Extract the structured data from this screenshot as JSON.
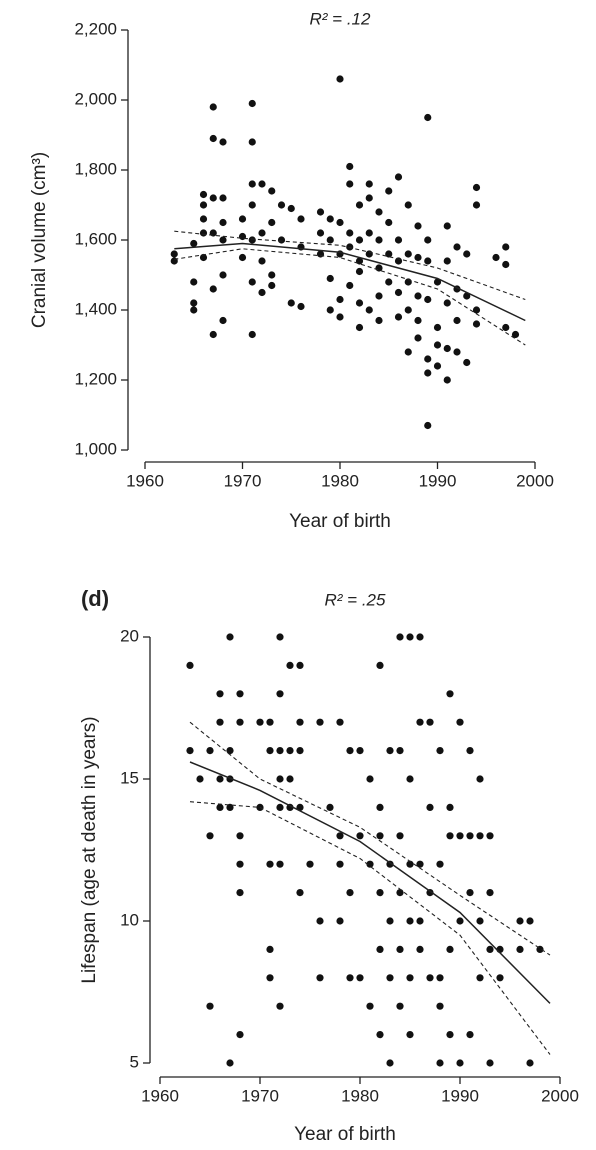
{
  "chart_data": [
    {
      "type": "scatter",
      "title": "R² = .12",
      "xlabel": "Year of birth",
      "ylabel": "Cranial volume (cm³)",
      "xlim": [
        1960,
        2000
      ],
      "xticks": [
        1960,
        1970,
        1980,
        1990,
        2000
      ],
      "ylim": [
        1000,
        2200
      ],
      "yticks": [
        {
          "value": 1000,
          "label": "1,000"
        },
        {
          "value": 1200,
          "label": "1,200"
        },
        {
          "value": 1400,
          "label": "1,400"
        },
        {
          "value": 1600,
          "label": "1,600"
        },
        {
          "value": 1800,
          "label": "1,800"
        },
        {
          "value": 2000,
          "label": "2,000"
        },
        {
          "value": 2200,
          "label": "2,200"
        }
      ],
      "color": "#111111",
      "points": [
        [
          1963,
          1540
        ],
        [
          1963,
          1560
        ],
        [
          1965,
          1400
        ],
        [
          1965,
          1420
        ],
        [
          1965,
          1480
        ],
        [
          1965,
          1590
        ],
        [
          1966,
          1620
        ],
        [
          1966,
          1660
        ],
        [
          1966,
          1700
        ],
        [
          1966,
          1730
        ],
        [
          1966,
          1550
        ],
        [
          1967,
          1980
        ],
        [
          1967,
          1890
        ],
        [
          1967,
          1330
        ],
        [
          1967,
          1460
        ],
        [
          1967,
          1620
        ],
        [
          1967,
          1720
        ],
        [
          1968,
          1880
        ],
        [
          1968,
          1720
        ],
        [
          1968,
          1370
        ],
        [
          1968,
          1500
        ],
        [
          1968,
          1600
        ],
        [
          1968,
          1650
        ],
        [
          1970,
          1660
        ],
        [
          1970,
          1610
        ],
        [
          1970,
          1550
        ],
        [
          1971,
          1990
        ],
        [
          1971,
          1880
        ],
        [
          1971,
          1760
        ],
        [
          1971,
          1330
        ],
        [
          1971,
          1480
        ],
        [
          1971,
          1600
        ],
        [
          1971,
          1700
        ],
        [
          1972,
          1760
        ],
        [
          1972,
          1620
        ],
        [
          1972,
          1540
        ],
        [
          1972,
          1450
        ],
        [
          1973,
          1740
        ],
        [
          1973,
          1650
        ],
        [
          1973,
          1500
        ],
        [
          1973,
          1470
        ],
        [
          1974,
          1700
        ],
        [
          1974,
          1600
        ],
        [
          1975,
          1690
        ],
        [
          1975,
          1420
        ],
        [
          1976,
          1660
        ],
        [
          1976,
          1410
        ],
        [
          1976,
          1580
        ],
        [
          1978,
          1680
        ],
        [
          1978,
          1620
        ],
        [
          1978,
          1560
        ],
        [
          1979,
          1660
        ],
        [
          1979,
          1400
        ],
        [
          1979,
          1600
        ],
        [
          1979,
          1490
        ],
        [
          1980,
          2060
        ],
        [
          1980,
          1650
        ],
        [
          1980,
          1560
        ],
        [
          1980,
          1430
        ],
        [
          1980,
          1380
        ],
        [
          1981,
          1810
        ],
        [
          1981,
          1760
        ],
        [
          1981,
          1620
        ],
        [
          1981,
          1580
        ],
        [
          1981,
          1470
        ],
        [
          1982,
          1700
        ],
        [
          1982,
          1600
        ],
        [
          1982,
          1540
        ],
        [
          1982,
          1510
        ],
        [
          1982,
          1420
        ],
        [
          1982,
          1350
        ],
        [
          1983,
          1760
        ],
        [
          1983,
          1720
        ],
        [
          1983,
          1620
        ],
        [
          1983,
          1560
        ],
        [
          1983,
          1400
        ],
        [
          1984,
          1680
        ],
        [
          1984,
          1600
        ],
        [
          1984,
          1520
        ],
        [
          1984,
          1440
        ],
        [
          1984,
          1370
        ],
        [
          1985,
          1740
        ],
        [
          1985,
          1650
        ],
        [
          1985,
          1560
        ],
        [
          1985,
          1480
        ],
        [
          1986,
          1780
        ],
        [
          1986,
          1600
        ],
        [
          1986,
          1540
        ],
        [
          1986,
          1450
        ],
        [
          1986,
          1380
        ],
        [
          1987,
          1700
        ],
        [
          1987,
          1560
        ],
        [
          1987,
          1480
        ],
        [
          1987,
          1280
        ],
        [
          1987,
          1400
        ],
        [
          1988,
          1640
        ],
        [
          1988,
          1550
        ],
        [
          1988,
          1440
        ],
        [
          1988,
          1370
        ],
        [
          1988,
          1320
        ],
        [
          1989,
          1950
        ],
        [
          1989,
          1070
        ],
        [
          1989,
          1220
        ],
        [
          1989,
          1260
        ],
        [
          1989,
          1430
        ],
        [
          1989,
          1540
        ],
        [
          1989,
          1600
        ],
        [
          1990,
          1480
        ],
        [
          1990,
          1350
        ],
        [
          1990,
          1240
        ],
        [
          1990,
          1300
        ],
        [
          1991,
          1640
        ],
        [
          1991,
          1540
        ],
        [
          1991,
          1420
        ],
        [
          1991,
          1200
        ],
        [
          1991,
          1290
        ],
        [
          1992,
          1580
        ],
        [
          1992,
          1460
        ],
        [
          1992,
          1370
        ],
        [
          1992,
          1280
        ],
        [
          1993,
          1560
        ],
        [
          1993,
          1440
        ],
        [
          1993,
          1250
        ],
        [
          1994,
          1750
        ],
        [
          1994,
          1700
        ],
        [
          1994,
          1400
        ],
        [
          1994,
          1360
        ],
        [
          1996,
          1550
        ],
        [
          1997,
          1580
        ],
        [
          1997,
          1530
        ],
        [
          1997,
          1350
        ],
        [
          1998,
          1330
        ]
      ],
      "fit": {
        "x": [
          1963,
          1970,
          1980,
          1990,
          1999
        ],
        "y": [
          1575,
          1590,
          1565,
          1490,
          1370
        ],
        "lower": [
          1545,
          1575,
          1550,
          1460,
          1300
        ],
        "upper": [
          1625,
          1605,
          1585,
          1520,
          1430
        ]
      }
    },
    {
      "type": "scatter",
      "panel_label": "(d)",
      "title": "R² = .25",
      "xlabel": "Year of birth",
      "ylabel": "Lifespan (age at death in years)",
      "xlim": [
        1960,
        2000
      ],
      "xticks": [
        1960,
        1970,
        1980,
        1990,
        2000
      ],
      "ylim": [
        5,
        20
      ],
      "yticks": [
        5,
        10,
        15,
        20
      ],
      "color": "#111111",
      "points": [
        [
          1963,
          19
        ],
        [
          1963,
          16
        ],
        [
          1964,
          15
        ],
        [
          1965,
          16
        ],
        [
          1965,
          13
        ],
        [
          1965,
          7
        ],
        [
          1966,
          18
        ],
        [
          1966,
          17
        ],
        [
          1966,
          15
        ],
        [
          1966,
          14
        ],
        [
          1967,
          20
        ],
        [
          1967,
          16
        ],
        [
          1967,
          15
        ],
        [
          1967,
          14
        ],
        [
          1967,
          5
        ],
        [
          1968,
          18
        ],
        [
          1968,
          17
        ],
        [
          1968,
          13
        ],
        [
          1968,
          12
        ],
        [
          1968,
          11
        ],
        [
          1968,
          6
        ],
        [
          1970,
          17
        ],
        [
          1970,
          14
        ],
        [
          1971,
          17
        ],
        [
          1971,
          16
        ],
        [
          1971,
          12
        ],
        [
          1971,
          9
        ],
        [
          1971,
          8
        ],
        [
          1972,
          20
        ],
        [
          1972,
          18
        ],
        [
          1972,
          16
        ],
        [
          1972,
          15
        ],
        [
          1972,
          14
        ],
        [
          1972,
          12
        ],
        [
          1972,
          7
        ],
        [
          1973,
          19
        ],
        [
          1973,
          16
        ],
        [
          1973,
          15
        ],
        [
          1973,
          14
        ],
        [
          1974,
          19
        ],
        [
          1974,
          17
        ],
        [
          1974,
          16
        ],
        [
          1974,
          14
        ],
        [
          1974,
          11
        ],
        [
          1975,
          12
        ],
        [
          1976,
          17
        ],
        [
          1976,
          10
        ],
        [
          1976,
          8
        ],
        [
          1977,
          14
        ],
        [
          1978,
          17
        ],
        [
          1978,
          13
        ],
        [
          1978,
          12
        ],
        [
          1978,
          10
        ],
        [
          1979,
          16
        ],
        [
          1979,
          11
        ],
        [
          1979,
          8
        ],
        [
          1980,
          16
        ],
        [
          1980,
          13
        ],
        [
          1980,
          8
        ],
        [
          1981,
          15
        ],
        [
          1981,
          12
        ],
        [
          1981,
          7
        ],
        [
          1982,
          19
        ],
        [
          1982,
          14
        ],
        [
          1982,
          13
        ],
        [
          1982,
          11
        ],
        [
          1982,
          9
        ],
        [
          1982,
          6
        ],
        [
          1983,
          16
        ],
        [
          1983,
          12
        ],
        [
          1983,
          10
        ],
        [
          1983,
          8
        ],
        [
          1983,
          5
        ],
        [
          1984,
          20
        ],
        [
          1984,
          16
        ],
        [
          1984,
          13
        ],
        [
          1984,
          11
        ],
        [
          1984,
          9
        ],
        [
          1984,
          7
        ],
        [
          1985,
          20
        ],
        [
          1985,
          15
        ],
        [
          1985,
          12
        ],
        [
          1985,
          10
        ],
        [
          1985,
          8
        ],
        [
          1985,
          6
        ],
        [
          1986,
          20
        ],
        [
          1986,
          17
        ],
        [
          1986,
          12
        ],
        [
          1986,
          10
        ],
        [
          1986,
          9
        ],
        [
          1987,
          17
        ],
        [
          1987,
          14
        ],
        [
          1987,
          11
        ],
        [
          1987,
          8
        ],
        [
          1988,
          16
        ],
        [
          1988,
          12
        ],
        [
          1988,
          8
        ],
        [
          1988,
          7
        ],
        [
          1988,
          5
        ],
        [
          1989,
          18
        ],
        [
          1989,
          14
        ],
        [
          1989,
          13
        ],
        [
          1989,
          9
        ],
        [
          1989,
          6
        ],
        [
          1990,
          17
        ],
        [
          1990,
          13
        ],
        [
          1990,
          10
        ],
        [
          1990,
          5
        ],
        [
          1991,
          16
        ],
        [
          1991,
          13
        ],
        [
          1991,
          11
        ],
        [
          1991,
          6
        ],
        [
          1992,
          15
        ],
        [
          1992,
          13
        ],
        [
          1992,
          10
        ],
        [
          1992,
          8
        ],
        [
          1993,
          13
        ],
        [
          1993,
          11
        ],
        [
          1993,
          9
        ],
        [
          1993,
          5
        ],
        [
          1994,
          9
        ],
        [
          1994,
          8
        ],
        [
          1996,
          10
        ],
        [
          1996,
          9
        ],
        [
          1997,
          10
        ],
        [
          1997,
          5
        ],
        [
          1998,
          9
        ]
      ],
      "fit": {
        "x": [
          1963,
          1970,
          1980,
          1990,
          1999
        ],
        "y": [
          15.6,
          14.6,
          12.8,
          10.3,
          7.1
        ],
        "lower": [
          14.2,
          14.0,
          12.2,
          9.5,
          5.3
        ],
        "upper": [
          17.0,
          15.0,
          13.3,
          10.9,
          8.8
        ]
      }
    }
  ]
}
